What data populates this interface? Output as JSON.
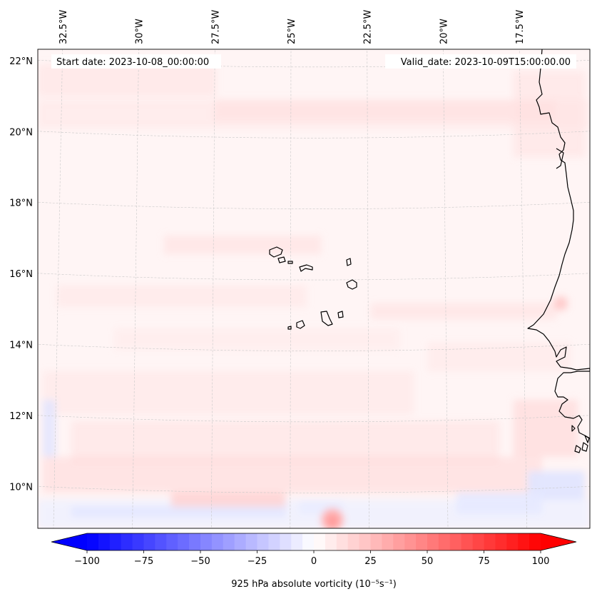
{
  "map": {
    "start_date_label": "Start date: 2023-10-08_00:00:00",
    "valid_date_label": "Valid_date: 2023-10-09T15:00:00.00",
    "projection": "lambert-conformal",
    "extent": {
      "lon_min": -33.0,
      "lon_max": -15.5,
      "lat_min": 9.0,
      "lat_max": 22.5
    },
    "lon_ticks": [
      {
        "value": -32.5,
        "label": "32.5°W"
      },
      {
        "value": -30.0,
        "label": "30°W"
      },
      {
        "value": -27.5,
        "label": "27.5°W"
      },
      {
        "value": -25.0,
        "label": "25°W"
      },
      {
        "value": -22.5,
        "label": "22.5°W"
      },
      {
        "value": -20.0,
        "label": "20°W"
      },
      {
        "value": -17.5,
        "label": "17.5°W"
      }
    ],
    "lat_ticks": [
      {
        "value": 22,
        "label": "22°N"
      },
      {
        "value": 20,
        "label": "20°N"
      },
      {
        "value": 18,
        "label": "18°N"
      },
      {
        "value": 16,
        "label": "16°N"
      },
      {
        "value": 14,
        "label": "14°N"
      },
      {
        "value": 12,
        "label": "12°N"
      },
      {
        "value": 10,
        "label": "10°N"
      }
    ],
    "gridlines": true,
    "colors": {
      "background_field": "#fff5f5",
      "coastline": "#000000",
      "gridline": "#c8c8c8"
    }
  },
  "colorbar": {
    "label": "925 hPa absolute vorticity (10⁻⁵s⁻¹)",
    "min": -100,
    "max": 100,
    "ticks": [
      {
        "value": -100,
        "label": "−100"
      },
      {
        "value": -75,
        "label": "−75"
      },
      {
        "value": -50,
        "label": "−50"
      },
      {
        "value": -25,
        "label": "−25"
      },
      {
        "value": 0,
        "label": "0"
      },
      {
        "value": 25,
        "label": "25"
      },
      {
        "value": 50,
        "label": "50"
      },
      {
        "value": 75,
        "label": "75"
      },
      {
        "value": 100,
        "label": "100"
      }
    ],
    "levels": 40,
    "colormap": "bwr",
    "extend": "both",
    "color_low": "#0000ff",
    "color_mid": "#ffffff",
    "color_high": "#ff0000"
  }
}
